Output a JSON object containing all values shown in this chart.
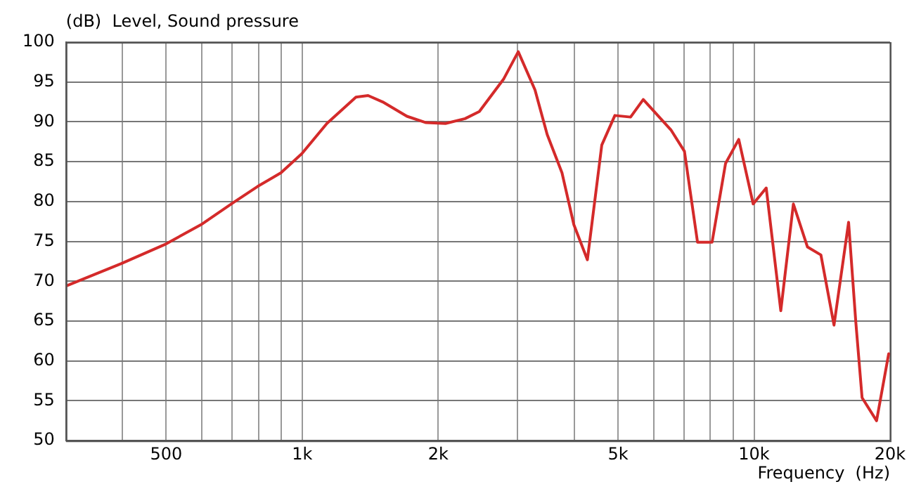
{
  "chart_data": {
    "type": "line",
    "xlabel": "Frequency  (Hz)",
    "ylabel": "(dB)  Level, Sound pressure",
    "log": "x",
    "grid": true,
    "legend": false,
    "marker": "none",
    "line_style": "solid",
    "xlim": [
      300,
      20000
    ],
    "xticks": [
      {
        "value": 400,
        "label": null
      },
      {
        "value": 500,
        "label": "500"
      },
      {
        "value": 600,
        "label": null
      },
      {
        "value": 700,
        "label": null
      },
      {
        "value": 800,
        "label": null
      },
      {
        "value": 900,
        "label": null
      },
      {
        "value": 1000,
        "label": "1k"
      },
      {
        "value": 2000,
        "label": "2k"
      },
      {
        "value": 3000,
        "label": null
      },
      {
        "value": 4000,
        "label": null
      },
      {
        "value": 5000,
        "label": "5k"
      },
      {
        "value": 6000,
        "label": null
      },
      {
        "value": 7000,
        "label": null
      },
      {
        "value": 8000,
        "label": null
      },
      {
        "value": 9000,
        "label": null
      },
      {
        "value": 10000,
        "label": "10k"
      },
      {
        "value": 20000,
        "label": "20k"
      }
    ],
    "ylim": [
      50,
      100
    ],
    "yticks": [
      50,
      55,
      60,
      65,
      70,
      75,
      80,
      85,
      90,
      95,
      100
    ],
    "x": [
      300,
      397,
      496,
      597,
      701,
      797,
      897,
      998,
      1134,
      1315,
      1399,
      1507,
      1705,
      1880,
      2075,
      2293,
      2466,
      2793,
      3007,
      3275,
      3485,
      3758,
      3992,
      4277,
      4603,
      4920,
      5330,
      5686,
      6546,
      7014,
      7497,
      8074,
      8650,
      9250,
      9956,
      10640,
      11460,
      12220,
      13130,
      14060,
      15030,
      16190,
      16790,
      17340,
      18670,
      19860
    ],
    "series": [
      {
        "color": "#d42a2a",
        "values": [
          69.4,
          72.2,
          74.6,
          77.1,
          79.8,
          81.9,
          83.6,
          86.0,
          89.8,
          93.1,
          93.3,
          92.5,
          90.7,
          89.9,
          89.8,
          90.4,
          91.3,
          95.4,
          98.8,
          94.0,
          88.4,
          83.6,
          77.1,
          72.7,
          87.1,
          90.8,
          90.6,
          92.8,
          89.0,
          86.3,
          74.9,
          74.9,
          84.8,
          87.8,
          79.7,
          81.7,
          66.3,
          79.7,
          74.3,
          73.3,
          64.5,
          77.4,
          65.0,
          55.4,
          52.5,
          60.9
        ]
      }
    ]
  }
}
